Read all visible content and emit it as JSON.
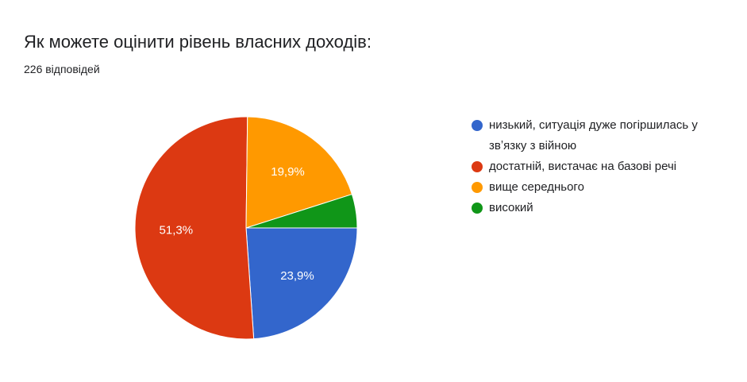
{
  "chart_data": {
    "type": "pie",
    "title": "Як можете оцінити рівень власних доходів:",
    "subtitle": "226 відповідей",
    "categories": [
      "низький, ситуація дуже погіршилась у звʼязку з війною",
      "достатній, вистачає на базові речі",
      "вище середнього",
      "високий"
    ],
    "values": [
      23.9,
      51.3,
      19.9,
      4.9
    ],
    "value_labels": [
      "23,9%",
      "51,3%",
      "19,9%",
      ""
    ],
    "colors": [
      "#3366cc",
      "#dc3912",
      "#ff9900",
      "#109618"
    ],
    "legend_position": "right"
  }
}
